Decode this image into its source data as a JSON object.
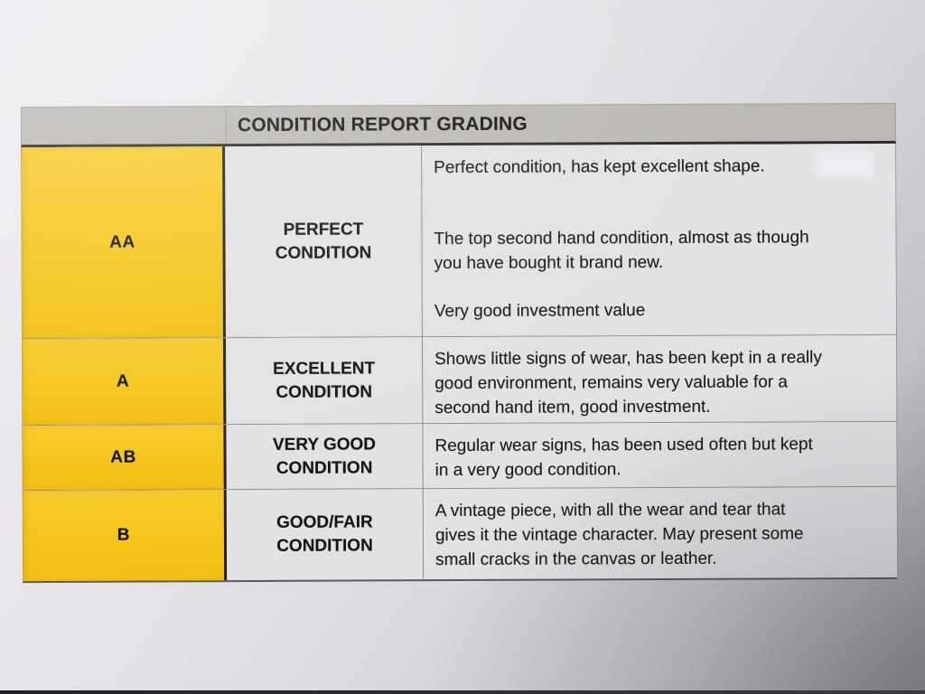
{
  "header": {
    "title": "CONDITION REPORT GRADING"
  },
  "rows": [
    {
      "grade": "AA",
      "label": "PERFECT CONDITION",
      "paragraphs": [
        "Perfect condition, has kept excellent shape.",
        "The top second hand condition, almost as though\nyou have bought it brand new.",
        "Very good investment value"
      ]
    },
    {
      "grade": "A",
      "label": "EXCELLENT CONDITION",
      "paragraphs": [
        "Shows little signs of wear, has been kept in a really\ngood environment, remains very valuable for a\nsecond hand item, good investment."
      ]
    },
    {
      "grade": "AB",
      "label": "VERY GOOD CONDITION",
      "paragraphs": [
        "Regular wear signs, has been used often but kept\nin a very good condition."
      ]
    },
    {
      "grade": "B",
      "label": "GOOD/FAIR CONDITION",
      "paragraphs": [
        "A vintage piece, with all the wear and tear that\ngives it the vintage character. May present some\nsmall cracks in the canvas or leather."
      ]
    }
  ],
  "colors": {
    "accent_yellow": "#F5C51C",
    "header_gray": "#BCB9B4",
    "cell_paper": "#E2E1E4",
    "paper_light": "#ECEBEF",
    "paper_dark": "#98969C",
    "line_dark": "#21201D",
    "line_light": "#8F8D89",
    "text": "#1B1B1A"
  }
}
